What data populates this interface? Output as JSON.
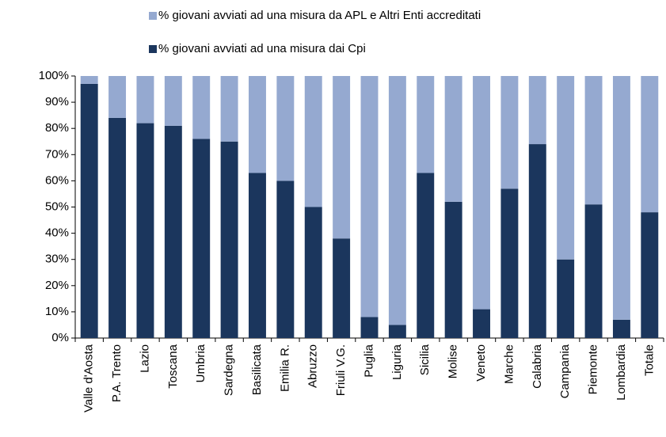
{
  "chart_data": {
    "type": "bar",
    "stacked": true,
    "categories": [
      "Valle d'Aosta",
      "P.A. Trento",
      "Lazio",
      "Toscana",
      "Umbria",
      "Sardegna",
      "Basilicata",
      "Emilia R.",
      "Abruzzo",
      "Friuli V.G.",
      "Puglia",
      "Liguria",
      "Sicilia",
      "Molise",
      "Veneto",
      "Marche",
      "Calabria",
      "Campania",
      "Piemonte",
      "Lombardia",
      "Totale"
    ],
    "series": [
      {
        "name": "% giovani avviati ad una misura da APL e Altri Enti accreditati",
        "color": "#95a9d0",
        "values": [
          3,
          16,
          18,
          19,
          24,
          25,
          37,
          40,
          50,
          62,
          92,
          95,
          37,
          48,
          89,
          43,
          26,
          70,
          49,
          93,
          52
        ]
      },
      {
        "name": "% giovani avviati ad una misura dai Cpi",
        "color": "#1b365d",
        "values": [
          97,
          84,
          82,
          81,
          76,
          75,
          63,
          60,
          50,
          38,
          8,
          5,
          63,
          52,
          11,
          57,
          74,
          30,
          51,
          7,
          48
        ]
      }
    ],
    "stack_order": [
      1,
      0
    ],
    "ylim": [
      0,
      100
    ],
    "yticks": [
      {
        "value": 0,
        "label": "0%"
      },
      {
        "value": 10,
        "label": "10%"
      },
      {
        "value": 20,
        "label": "20%"
      },
      {
        "value": 30,
        "label": "30%"
      },
      {
        "value": 40,
        "label": "40%"
      },
      {
        "value": 50,
        "label": "50%"
      },
      {
        "value": 60,
        "label": "60%"
      },
      {
        "value": 70,
        "label": "70%"
      },
      {
        "value": 80,
        "label": "80%"
      },
      {
        "value": 90,
        "label": "90%"
      },
      {
        "value": 100,
        "label": "100%"
      }
    ],
    "grid": false,
    "legend": "top"
  }
}
